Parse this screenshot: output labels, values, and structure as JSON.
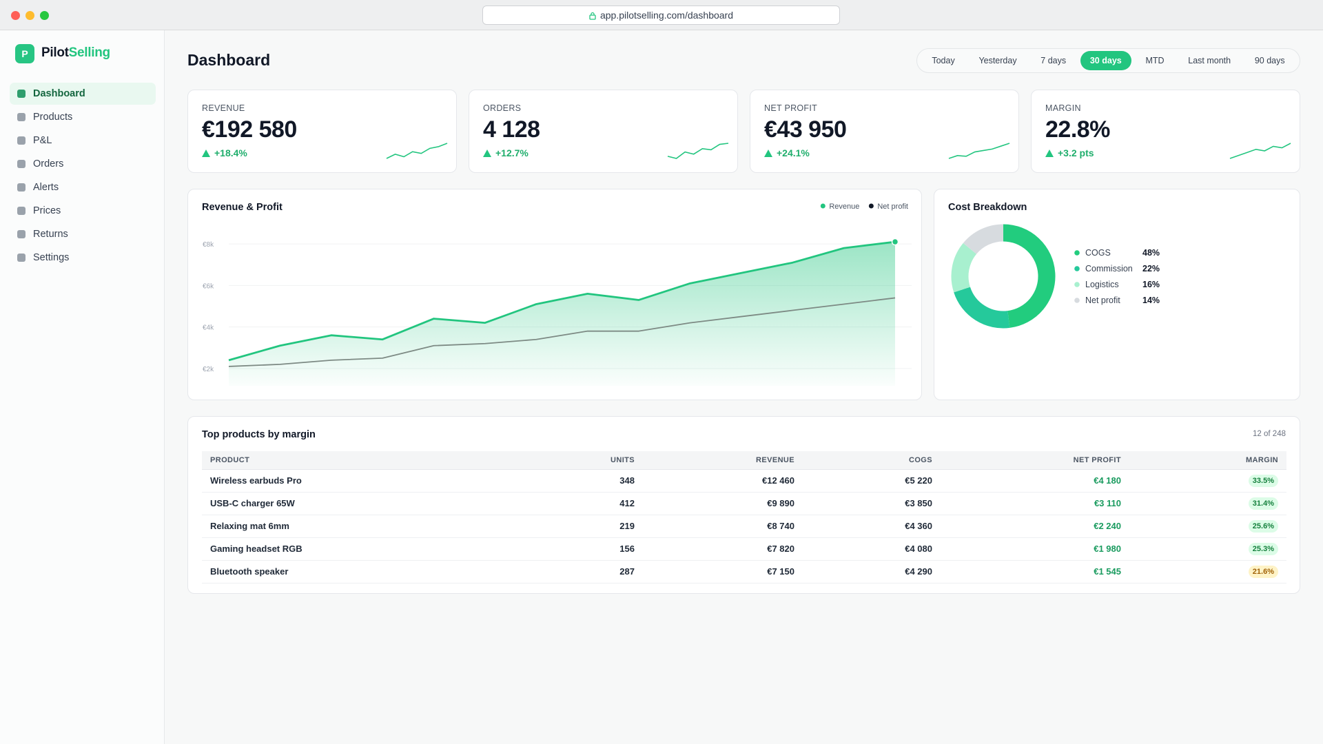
{
  "browser": {
    "url": "app.pilotselling.com/dashboard"
  },
  "sidebar": {
    "logo": "P",
    "brand_prefix": "Pilot",
    "brand_suffix": "Selling",
    "nav": [
      "Dashboard",
      "Products",
      "P&L",
      "Orders",
      "Alerts",
      "Prices",
      "Returns",
      "Settings"
    ],
    "selected": 0
  },
  "header": {
    "title": "Dashboard",
    "ranges": [
      "Today",
      "Yesterday",
      "7 days",
      "30 days",
      "MTD",
      "Last month",
      "90 days"
    ],
    "selected": 3
  },
  "kpis": [
    {
      "label": "REVENUE",
      "value": "€192 580",
      "change": "+18.4%",
      "spark": [
        2,
        3,
        2.4,
        3.6,
        3.2,
        4.4,
        4.8,
        5.6
      ]
    },
    {
      "label": "ORDERS",
      "value": "4 128",
      "change": "+12.7%",
      "spark": [
        3,
        2.6,
        3.8,
        3.4,
        4.4,
        4.2,
        5.2,
        5.4
      ]
    },
    {
      "label": "NET PROFIT",
      "value": "€43 950",
      "change": "+24.1%",
      "spark": [
        2,
        2.8,
        2.6,
        3.8,
        4.2,
        4.6,
        5.4,
        6.2
      ]
    },
    {
      "label": "MARGIN",
      "value": "22.8%",
      "change": "+3.2 pts",
      "spark": [
        3,
        3.4,
        3.8,
        4.2,
        4.0,
        4.6,
        4.4,
        5.0
      ]
    }
  ],
  "chart_data": [
    {
      "type": "area",
      "title": "Revenue & Profit",
      "ylim": [
        1500,
        8500
      ],
      "yticks": [
        {
          "value": 2000,
          "label": "€2k"
        },
        {
          "value": 4000,
          "label": "€4k"
        },
        {
          "value": 6000,
          "label": "€6k"
        },
        {
          "value": 8000,
          "label": "€8k"
        }
      ],
      "grid": true,
      "legend": "top-right",
      "series": [
        {
          "name": "Revenue",
          "color": "#22c57f",
          "values": [
            2400,
            3100,
            3600,
            3400,
            4400,
            4200,
            5100,
            5600,
            5300,
            6100,
            6600,
            7100,
            7800,
            8100
          ]
        },
        {
          "name": "Net profit",
          "color": "#7d8a84",
          "values": [
            2100,
            2200,
            2400,
            2500,
            3100,
            3200,
            3400,
            3800,
            3800,
            4200,
            4500,
            4800,
            5100,
            5400
          ]
        }
      ]
    },
    {
      "type": "donut",
      "title": "Cost Breakdown",
      "categories": [
        "COGS",
        "Commission",
        "Logistics",
        "Net profit"
      ],
      "values": [
        48,
        22,
        16,
        14
      ],
      "value_labels": [
        "48%",
        "22%",
        "16%",
        "14%"
      ],
      "colors": [
        "#22cc7e",
        "#25c99b",
        "#a8f0cf",
        "#d7dbdf"
      ]
    }
  ],
  "table": {
    "title": "Top products by margin",
    "count": "12 of 248",
    "columns": [
      "PRODUCT",
      "UNITS",
      "REVENUE",
      "COGS",
      "NET PROFIT",
      "MARGIN"
    ],
    "rows": [
      [
        "Wireless earbuds Pro",
        "348",
        "€12 460",
        "€5 220",
        "€4 180",
        "33.5%"
      ],
      [
        "USB-C charger 65W",
        "412",
        "€9 890",
        "€3 850",
        "€3 110",
        "31.4%"
      ],
      [
        "Relaxing mat 6mm",
        "219",
        "€8 740",
        "€4 360",
        "€2 240",
        "25.6%"
      ],
      [
        "Gaming headset RGB",
        "156",
        "€7 820",
        "€4 080",
        "€1 980",
        "25.3%"
      ],
      [
        "Bluetooth speaker",
        "287",
        "€7 150",
        "€4 290",
        "€1 545",
        "21.6%"
      ]
    ]
  }
}
